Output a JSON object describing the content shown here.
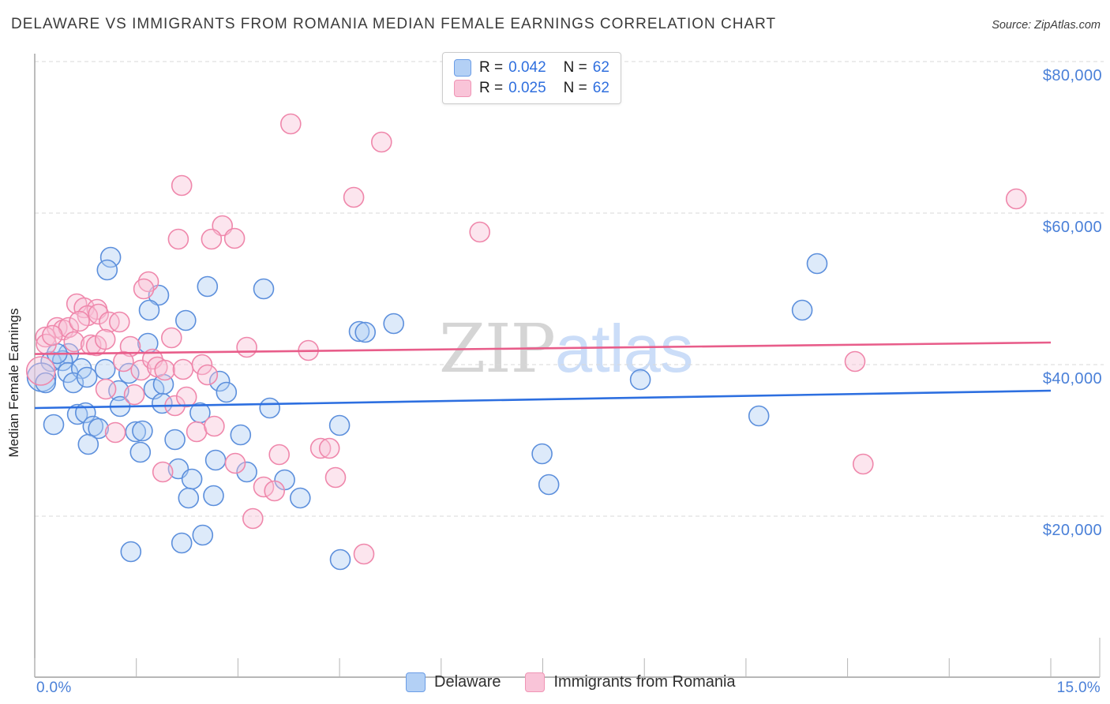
{
  "header": {
    "title": "DELAWARE VS IMMIGRANTS FROM ROMANIA MEDIAN FEMALE EARNINGS CORRELATION CHART",
    "source": "Source: ZipAtlas.com"
  },
  "y_axis": {
    "title": "Median Female Earnings"
  },
  "watermark": {
    "part1": "ZIP",
    "part2": "atlas"
  },
  "legend_box": {
    "r_label": "R =",
    "n_label": "N =",
    "series": [
      {
        "name": "Delaware",
        "r": "0.042",
        "n": "62"
      },
      {
        "name": "Immigrants from Romania",
        "r": "0.025",
        "n": "62"
      }
    ]
  },
  "bottom_legend": {
    "items": [
      {
        "label": "Delaware"
      },
      {
        "label": "Immigrants from Romania"
      }
    ]
  },
  "colors": {
    "blue_fill": "#aecdf3",
    "blue_stroke": "#5c8fdc",
    "pink_fill": "#f8c2d6",
    "pink_stroke": "#ef87ab",
    "trend_blue": "#2d6fe0",
    "trend_pink": "#e85d8a",
    "axis_label_blue": "#4a80d8",
    "gridline": "#d9d9d9",
    "axis": "#9f9f9f"
  },
  "chart_data": {
    "type": "scatter",
    "title": "DELAWARE VS IMMIGRANTS FROM ROMANIA MEDIAN FEMALE EARNINGS CORRELATION CHART",
    "xlabel_left": "0.0%",
    "xlabel_right": "15.0%",
    "ylabel": "Median Female Earnings",
    "x_range": [
      0,
      15
    ],
    "x_unit": "percent",
    "y_unit": "USD",
    "grid": "dashed horizontal",
    "legend_position": "bottom-center",
    "y_ticks": [
      {
        "label": "$80,000",
        "value": 80000
      },
      {
        "label": "$60,000",
        "value": 60000
      },
      {
        "label": "$40,000",
        "value": 40000
      },
      {
        "label": "$20,000",
        "value": 20000
      }
    ],
    "x_tick_interval_pct": 1.5,
    "series": [
      {
        "name": "Delaware",
        "point_name": "delaware-point",
        "fill": "#aecdf3",
        "stroke": "#5c8fdc",
        "points": [
          [
            1.12,
            54170
          ],
          [
            1.07,
            52500
          ],
          [
            2.55,
            50310
          ],
          [
            3.38,
            50000
          ],
          [
            1.83,
            49170
          ],
          [
            1.69,
            47190
          ],
          [
            2.23,
            45830
          ],
          [
            1.67,
            42810
          ],
          [
            4.79,
            44380
          ],
          [
            5.3,
            45420
          ],
          [
            4.88,
            44270
          ],
          [
            0.5,
            41460
          ],
          [
            0.24,
            40420
          ],
          [
            0.41,
            40520
          ],
          [
            0.49,
            38960
          ],
          [
            0.69,
            39480
          ],
          [
            0.57,
            37600
          ],
          [
            0.1,
            38330,
            1
          ],
          [
            0.16,
            37600
          ],
          [
            1.04,
            39380
          ],
          [
            1.39,
            38850
          ],
          [
            1.24,
            36560
          ],
          [
            1.76,
            36770
          ],
          [
            1.9,
            37400
          ],
          [
            1.26,
            34480
          ],
          [
            2.73,
            37810
          ],
          [
            2.83,
            36350
          ],
          [
            2.44,
            33650
          ],
          [
            3.47,
            34270
          ],
          [
            0.28,
            32080
          ],
          [
            0.63,
            33440
          ],
          [
            0.75,
            33650
          ],
          [
            0.86,
            31880
          ],
          [
            0.94,
            31560
          ],
          [
            1.49,
            31150
          ],
          [
            1.59,
            31250
          ],
          [
            0.79,
            29480
          ],
          [
            1.56,
            28440
          ],
          [
            2.07,
            30100
          ],
          [
            3.04,
            30730
          ],
          [
            4.5,
            31980
          ],
          [
            2.67,
            27400
          ],
          [
            2.12,
            26250
          ],
          [
            2.32,
            24900
          ],
          [
            3.69,
            24790
          ],
          [
            3.13,
            25830
          ],
          [
            3.92,
            22400
          ],
          [
            2.27,
            22400
          ],
          [
            2.64,
            22710
          ],
          [
            2.48,
            17500
          ],
          [
            2.17,
            16460
          ],
          [
            1.42,
            15310
          ],
          [
            4.51,
            14270
          ],
          [
            7.49,
            28230
          ],
          [
            7.59,
            24170
          ],
          [
            8.94,
            38020
          ],
          [
            10.69,
            33230
          ],
          [
            11.33,
            47190
          ],
          [
            11.55,
            53330
          ],
          [
            0.33,
            41460
          ],
          [
            0.77,
            38330
          ],
          [
            1.88,
            34900
          ]
        ]
      },
      {
        "name": "Immigrants from Romania",
        "point_name": "romania-point",
        "fill": "#f8c2d6",
        "stroke": "#ef87ab",
        "points": [
          [
            3.78,
            71770
          ],
          [
            5.12,
            69380
          ],
          [
            2.17,
            63650
          ],
          [
            4.71,
            62080
          ],
          [
            14.49,
            61880
          ],
          [
            6.57,
            57500
          ],
          [
            2.77,
            58330
          ],
          [
            2.12,
            56560
          ],
          [
            2.61,
            56560
          ],
          [
            2.95,
            56670
          ],
          [
            1.68,
            50940
          ],
          [
            1.61,
            50000
          ],
          [
            0.62,
            48020
          ],
          [
            0.73,
            47500
          ],
          [
            0.92,
            47290
          ],
          [
            0.78,
            46460
          ],
          [
            0.94,
            46670
          ],
          [
            1.1,
            45630
          ],
          [
            1.25,
            45630
          ],
          [
            0.33,
            44900
          ],
          [
            0.42,
            44580
          ],
          [
            0.5,
            44900
          ],
          [
            0.16,
            43650
          ],
          [
            0.17,
            42710
          ],
          [
            0.58,
            43020
          ],
          [
            0.83,
            42600
          ],
          [
            0.91,
            42500
          ],
          [
            1.41,
            42400
          ],
          [
            2.02,
            43540
          ],
          [
            3.13,
            42290
          ],
          [
            4.04,
            41880
          ],
          [
            0.09,
            39170,
            1
          ],
          [
            1.31,
            40420
          ],
          [
            1.57,
            39270
          ],
          [
            1.74,
            40730
          ],
          [
            1.81,
            39690
          ],
          [
            1.92,
            39270
          ],
          [
            1.05,
            36770
          ],
          [
            1.47,
            36040
          ],
          [
            2.07,
            34580
          ],
          [
            2.24,
            35730
          ],
          [
            2.47,
            40000
          ],
          [
            2.55,
            38650
          ],
          [
            1.19,
            31040
          ],
          [
            2.39,
            31150
          ],
          [
            2.65,
            31880
          ],
          [
            2.96,
            26980
          ],
          [
            1.89,
            25830
          ],
          [
            3.38,
            23850
          ],
          [
            3.54,
            23330
          ],
          [
            3.61,
            28130
          ],
          [
            4.22,
            28960
          ],
          [
            4.35,
            28960
          ],
          [
            4.44,
            25100
          ],
          [
            3.22,
            19690
          ],
          [
            4.86,
            15000
          ],
          [
            12.11,
            40420
          ],
          [
            12.23,
            26880
          ],
          [
            0.66,
            45730
          ],
          [
            1.04,
            43330
          ],
          [
            0.26,
            43850
          ],
          [
            2.19,
            39380
          ]
        ]
      }
    ],
    "trend_lines": [
      {
        "series": "Delaware",
        "x1": 0,
        "y1": 34270,
        "x2": 15,
        "y2": 36560,
        "color": "#2d6fe0"
      },
      {
        "series": "Immigrants from Romania",
        "x1": 0,
        "y1": 41400,
        "x2": 15,
        "y2": 42920,
        "color": "#e85d8a"
      }
    ]
  }
}
